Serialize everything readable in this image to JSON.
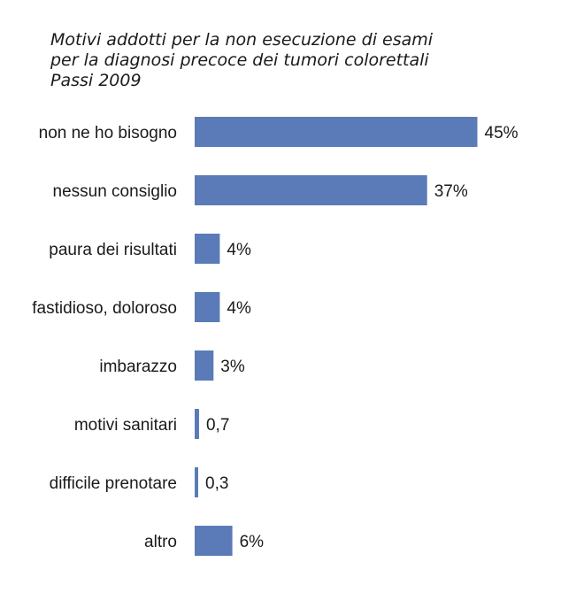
{
  "chart_data": {
    "type": "bar",
    "orientation": "horizontal",
    "title_lines": [
      "Motivi addotti per la non esecuzione di esami",
      "per la diagnosi precoce dei tumori colorettali",
      "Passi 2009"
    ],
    "categories": [
      "non ne ho bisogno",
      "nessun consiglio",
      "paura dei risultati",
      "fastidioso, doloroso",
      "imbarazzo",
      "motivi sanitari",
      "difficile prenotare",
      "altro"
    ],
    "values": [
      45,
      37,
      4,
      4,
      3,
      0.7,
      0.3,
      6
    ],
    "value_labels": [
      "45%",
      "37%",
      "4%",
      "4%",
      "3%",
      "0,7",
      "0,3",
      "6%"
    ],
    "xlim": [
      0,
      50
    ],
    "grid": false,
    "legend": "none",
    "bar_color": "#5b7bb8"
  }
}
